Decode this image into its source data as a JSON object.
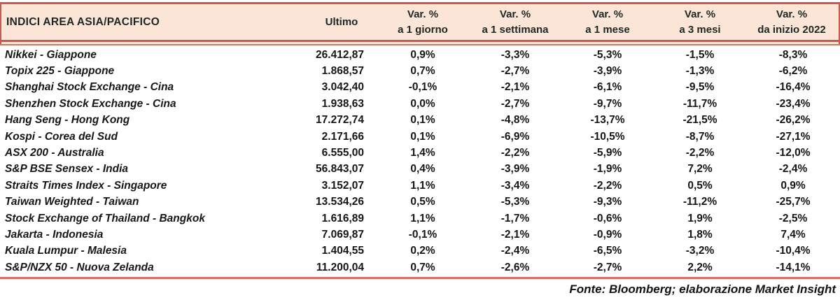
{
  "table": {
    "header": {
      "title": "INDICI AREA ASIA/PACIFICO",
      "ultimo": "Ultimo",
      "var_columns": [
        {
          "line1": "Var. %",
          "line2": "a 1 giorno"
        },
        {
          "line1": "Var. %",
          "line2": "a 1 settimana"
        },
        {
          "line1": "Var. %",
          "line2": "a 1 mese"
        },
        {
          "line1": "Var. %",
          "line2": "a 3 mesi"
        },
        {
          "line1": "Var. %",
          "line2": "da inizio 2022"
        }
      ]
    },
    "rows": [
      {
        "name": "Nikkei - Giappone",
        "ultimo": "26.412,87",
        "var_1d": "0,9%",
        "var_1w": "-3,3%",
        "var_1m": "-5,3%",
        "var_3m": "-1,5%",
        "var_ytd": "-8,3%"
      },
      {
        "name": "Topix 225 - Giappone",
        "ultimo": "1.868,57",
        "var_1d": "0,7%",
        "var_1w": "-2,7%",
        "var_1m": "-3,9%",
        "var_3m": "-1,3%",
        "var_ytd": "-6,2%"
      },
      {
        "name": "Shanghai Stock Exchange - Cina",
        "ultimo": "3.042,40",
        "var_1d": "-0,1%",
        "var_1w": "-2,1%",
        "var_1m": "-6,1%",
        "var_3m": "-9,5%",
        "var_ytd": "-16,4%"
      },
      {
        "name": "Shenzhen Stock Exchange - Cina",
        "ultimo": "1.938,63",
        "var_1d": "0,0%",
        "var_1w": "-2,7%",
        "var_1m": "-9,7%",
        "var_3m": "-11,7%",
        "var_ytd": "-23,4%"
      },
      {
        "name": "Hang Seng - Hong Kong",
        "ultimo": "17.272,74",
        "var_1d": "0,1%",
        "var_1w": "-4,8%",
        "var_1m": "-13,7%",
        "var_3m": "-21,5%",
        "var_ytd": "-26,2%"
      },
      {
        "name": "Kospi - Corea del Sud",
        "ultimo": "2.171,66",
        "var_1d": "0,1%",
        "var_1w": "-6,9%",
        "var_1m": "-10,5%",
        "var_3m": "-8,7%",
        "var_ytd": "-27,1%"
      },
      {
        "name": "ASX 200 - Australia",
        "ultimo": "6.555,00",
        "var_1d": "1,4%",
        "var_1w": "-2,2%",
        "var_1m": "-5,9%",
        "var_3m": "-2,2%",
        "var_ytd": "-12,0%"
      },
      {
        "name": "S&P BSE Sensex - India",
        "ultimo": "56.843,07",
        "var_1d": "0,4%",
        "var_1w": "-3,9%",
        "var_1m": "-1,9%",
        "var_3m": "7,2%",
        "var_ytd": "-2,4%"
      },
      {
        "name": "Straits Times Index - Singapore",
        "ultimo": "3.152,07",
        "var_1d": "1,1%",
        "var_1w": "-3,4%",
        "var_1m": "-2,2%",
        "var_3m": "0,5%",
        "var_ytd": "0,9%"
      },
      {
        "name": "Taiwan Weighted - Taiwan",
        "ultimo": "13.534,26",
        "var_1d": "0,5%",
        "var_1w": "-5,3%",
        "var_1m": "-9,3%",
        "var_3m": "-11,2%",
        "var_ytd": "-25,7%"
      },
      {
        "name": "Stock Exchange of Thailand - Bangkok",
        "ultimo": "1.616,89",
        "var_1d": "1,1%",
        "var_1w": "-1,7%",
        "var_1m": "-0,6%",
        "var_3m": "1,9%",
        "var_ytd": "-2,5%"
      },
      {
        "name": "Jakarta - Indonesia",
        "ultimo": "7.069,87",
        "var_1d": "-0,1%",
        "var_1w": "-2,1%",
        "var_1m": "-0,9%",
        "var_3m": "1,8%",
        "var_ytd": "7,4%"
      },
      {
        "name": "Kuala Lumpur - Malesia",
        "ultimo": "1.404,55",
        "var_1d": "0,2%",
        "var_1w": "-2,4%",
        "var_1m": "-6,5%",
        "var_3m": "-3,2%",
        "var_ytd": "-10,4%"
      },
      {
        "name": "S&P/NZX 50 - Nuova Zelanda",
        "ultimo": "11.200,04",
        "var_1d": "0,7%",
        "var_1w": "-2,6%",
        "var_1m": "-2,7%",
        "var_3m": "2,2%",
        "var_ytd": "-14,1%"
      }
    ]
  },
  "footer": {
    "text": "Fonte: Bloomberg; elaborazione Market Insight"
  },
  "colors": {
    "header_bg": "#FAE5D6",
    "rule_red": "#C65A4E",
    "bottom_rule": "#DB6A60",
    "header_text": "#1E2623",
    "body_text": "#161616"
  }
}
